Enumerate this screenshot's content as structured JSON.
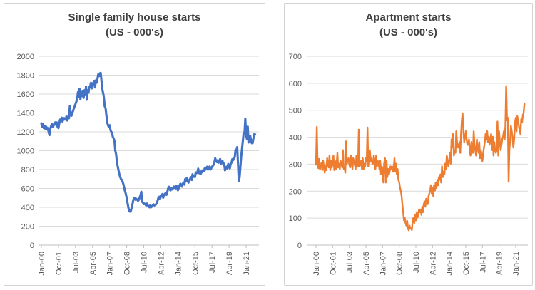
{
  "colors": {
    "single_family_line": "#4472C4",
    "apartment_line": "#ED7D31",
    "gridline": "#D9D9D9",
    "axis_line": "#BFBFBF",
    "tick_text": "#595959",
    "title_text": "#404040"
  },
  "chart_data": [
    {
      "type": "line",
      "title": "Single family house starts",
      "subtitle": "(US - 000's)",
      "line_color": "#4472C4",
      "ylim": [
        0,
        2000
      ],
      "ytick_step": 200,
      "grid": true,
      "legend": "none",
      "x_start": "Jan-00",
      "x_frequency": "monthly",
      "months_per_tick": 21,
      "x_tick_labels": [
        "Jan-00",
        "Oct-01",
        "Jul-03",
        "Apr-05",
        "Jan-07",
        "Oct-08",
        "Jul-10",
        "Apr-12",
        "Jan-14",
        "Oct-15",
        "Jul-17",
        "Apr-19",
        "Jan-21"
      ],
      "values": [
        1290,
        1255,
        1280,
        1240,
        1265,
        1230,
        1255,
        1225,
        1240,
        1195,
        1165,
        1230,
        1265,
        1280,
        1250,
        1265,
        1290,
        1300,
        1275,
        1300,
        1250,
        1240,
        1290,
        1330,
        1310,
        1350,
        1310,
        1330,
        1345,
        1330,
        1340,
        1365,
        1320,
        1350,
        1345,
        1470,
        1390,
        1370,
        1400,
        1420,
        1450,
        1470,
        1495,
        1520,
        1540,
        1620,
        1570,
        1655,
        1545,
        1620,
        1580,
        1635,
        1560,
        1640,
        1590,
        1680,
        1540,
        1640,
        1615,
        1680,
        1680,
        1720,
        1660,
        1715,
        1700,
        1740,
        1670,
        1745,
        1720,
        1760,
        1808,
        1790,
        1820,
        1825,
        1740,
        1650,
        1610,
        1560,
        1470,
        1450,
        1380,
        1300,
        1270,
        1250,
        1270,
        1220,
        1200,
        1190,
        1145,
        1130,
        1100,
        1000,
        960,
        880,
        830,
        790,
        750,
        720,
        700,
        690,
        670,
        645,
        605,
        570,
        540,
        500,
        450,
        400,
        360,
        355,
        360,
        390,
        430,
        470,
        500,
        500,
        480,
        490,
        480,
        470,
        480,
        505,
        530,
        565,
        460,
        450,
        435,
        440,
        430,
        420,
        440,
        420,
        413,
        400,
        422,
        400,
        410,
        420,
        432,
        420,
        425,
        432,
        442,
        470,
        500,
        512,
        490,
        512,
        522,
        540,
        502,
        535,
        540,
        552,
        532,
        562,
        600,
        618,
        590,
        580,
        600,
        590,
        602,
        620,
        610,
        600,
        630,
        618,
        580,
        602,
        630,
        650,
        640,
        620,
        650,
        662,
        640,
        700,
        680,
        710,
        682,
        662,
        690,
        700,
        720,
        690,
        750,
        722,
        732,
        722,
        770,
        762,
        772,
        810,
        762,
        772,
        752,
        782,
        772,
        790,
        782,
        812,
        800,
        820,
        830,
        800,
        820,
        832,
        800,
        812,
        830,
        840,
        852,
        880,
        920,
        890,
        880,
        900,
        872,
        890,
        912,
        862,
        880,
        890,
        852,
        862,
        792,
        812,
        830,
        812,
        860,
        842,
        812,
        862,
        872,
        910,
        900,
        922,
        932,
        1010,
        990,
        1037,
        871,
        678,
        720,
        840,
        944,
        1022,
        1108,
        1190,
        1190,
        1338,
        1162,
        1123,
        1255,
        1087,
        1132,
        1160,
        1111,
        1080,
        1081,
        1132,
        1175,
        1172
      ]
    },
    {
      "type": "line",
      "title": "Apartment starts",
      "subtitle": "(US - 000's)",
      "line_color": "#ED7D31",
      "ylim": [
        0,
        700
      ],
      "ytick_step": 100,
      "grid": true,
      "legend": "none",
      "x_start": "Jan-00",
      "x_frequency": "monthly",
      "months_per_tick": 21,
      "x_tick_labels": [
        "Jan-00",
        "Oct-01",
        "Jul-03",
        "Apr-05",
        "Jan-07",
        "Oct-08",
        "Jul-10",
        "Apr-12",
        "Jan-14",
        "Oct-15",
        "Jul-17",
        "Apr-19",
        "Jan-21"
      ],
      "values": [
        298,
        438,
        305,
        285,
        320,
        280,
        295,
        305,
        278,
        312,
        292,
        268,
        292,
        278,
        322,
        298,
        288,
        332,
        278,
        312,
        288,
        302,
        332,
        278,
        312,
        282,
        302,
        342,
        288,
        302,
        282,
        312,
        302,
        288,
        352,
        282,
        288,
        268,
        385,
        302,
        312,
        322,
        298,
        288,
        332,
        302,
        282,
        322,
        312,
        298,
        282,
        332,
        312,
        292,
        428,
        292,
        302,
        312,
        282,
        322,
        282,
        302,
        292,
        322,
        312,
        436,
        292,
        332,
        352,
        312,
        322,
        302,
        302,
        332,
        312,
        282,
        332,
        292,
        312,
        302,
        282,
        312,
        262,
        292,
        282,
        232,
        302,
        322,
        232,
        312,
        252,
        282,
        262,
        272,
        292,
        282,
        292,
        272,
        282,
        322,
        272,
        302,
        262,
        282,
        242,
        232,
        212,
        202,
        182,
        150,
        122,
        92,
        102,
        82,
        72,
        90,
        62,
        55,
        72,
        62,
        62,
        56,
        92,
        102,
        82,
        112,
        92,
        122,
        102,
        112,
        132,
        122,
        132,
        112,
        142,
        122,
        152,
        162,
        142,
        172,
        162,
        152,
        182,
        192,
        202,
        222,
        192,
        212,
        182,
        222,
        202,
        232,
        212,
        242,
        222,
        252,
        242,
        262,
        232,
        292,
        252,
        272,
        262,
        302,
        282,
        332,
        312,
        292,
        312,
        342,
        302,
        392,
        362,
        412,
        332,
        352,
        342,
        422,
        382,
        362,
        362,
        382,
        342,
        412,
        462,
        489,
        422,
        382,
        402,
        422,
        392,
        372,
        372,
        392,
        352,
        332,
        382,
        362,
        342,
        422,
        372,
        352,
        332,
        392,
        362,
        342,
        382,
        322,
        352,
        332,
        312,
        342,
        362,
        382,
        412,
        392,
        422,
        382,
        402,
        372,
        392,
        412,
        352,
        402,
        332,
        382,
        352,
        342,
        352,
        458,
        332,
        422,
        382,
        352,
        372,
        392,
        402,
        422,
        392,
        442,
        590,
        462,
        472,
        235,
        352,
        392,
        442,
        422,
        402,
        362,
        392,
        452,
        472,
        422,
        478,
        462,
        442,
        422,
        412,
        467,
        455,
        481,
        491,
        524
      ]
    }
  ]
}
